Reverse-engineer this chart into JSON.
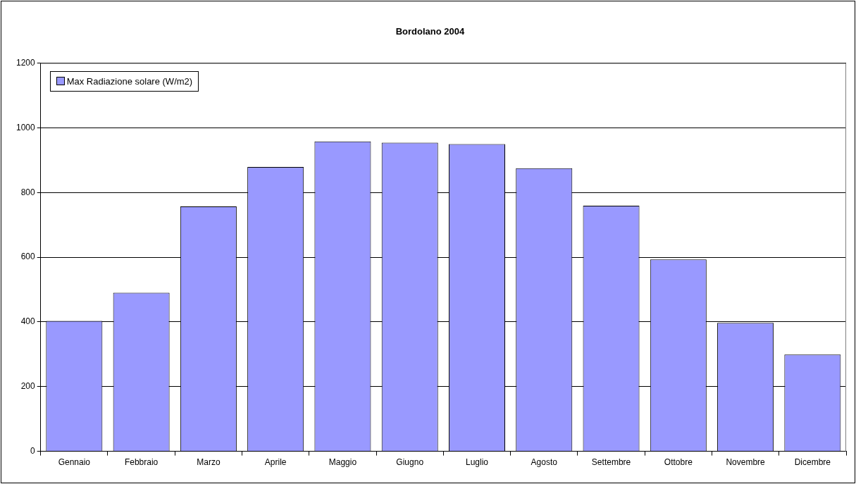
{
  "chart_data": {
    "type": "bar",
    "title": "Bordolano 2004",
    "categories": [
      "Gennaio",
      "Febbraio",
      "Marzo",
      "Aprile",
      "Maggio",
      "Giugno",
      "Luglio",
      "Agosto",
      "Settembre",
      "Ottobre",
      "Novembre",
      "Dicembre"
    ],
    "series": [
      {
        "name": "Max Radiazione solare (W/m2)",
        "color": "#9999ff",
        "values": [
          403,
          490,
          757,
          879,
          958,
          954,
          950,
          875,
          759,
          593,
          397,
          299
        ]
      }
    ],
    "ylim": [
      0,
      1200
    ],
    "yticks": [
      0,
      200,
      400,
      600,
      800,
      1000,
      1200
    ],
    "grid": "y",
    "legend": "top left"
  }
}
